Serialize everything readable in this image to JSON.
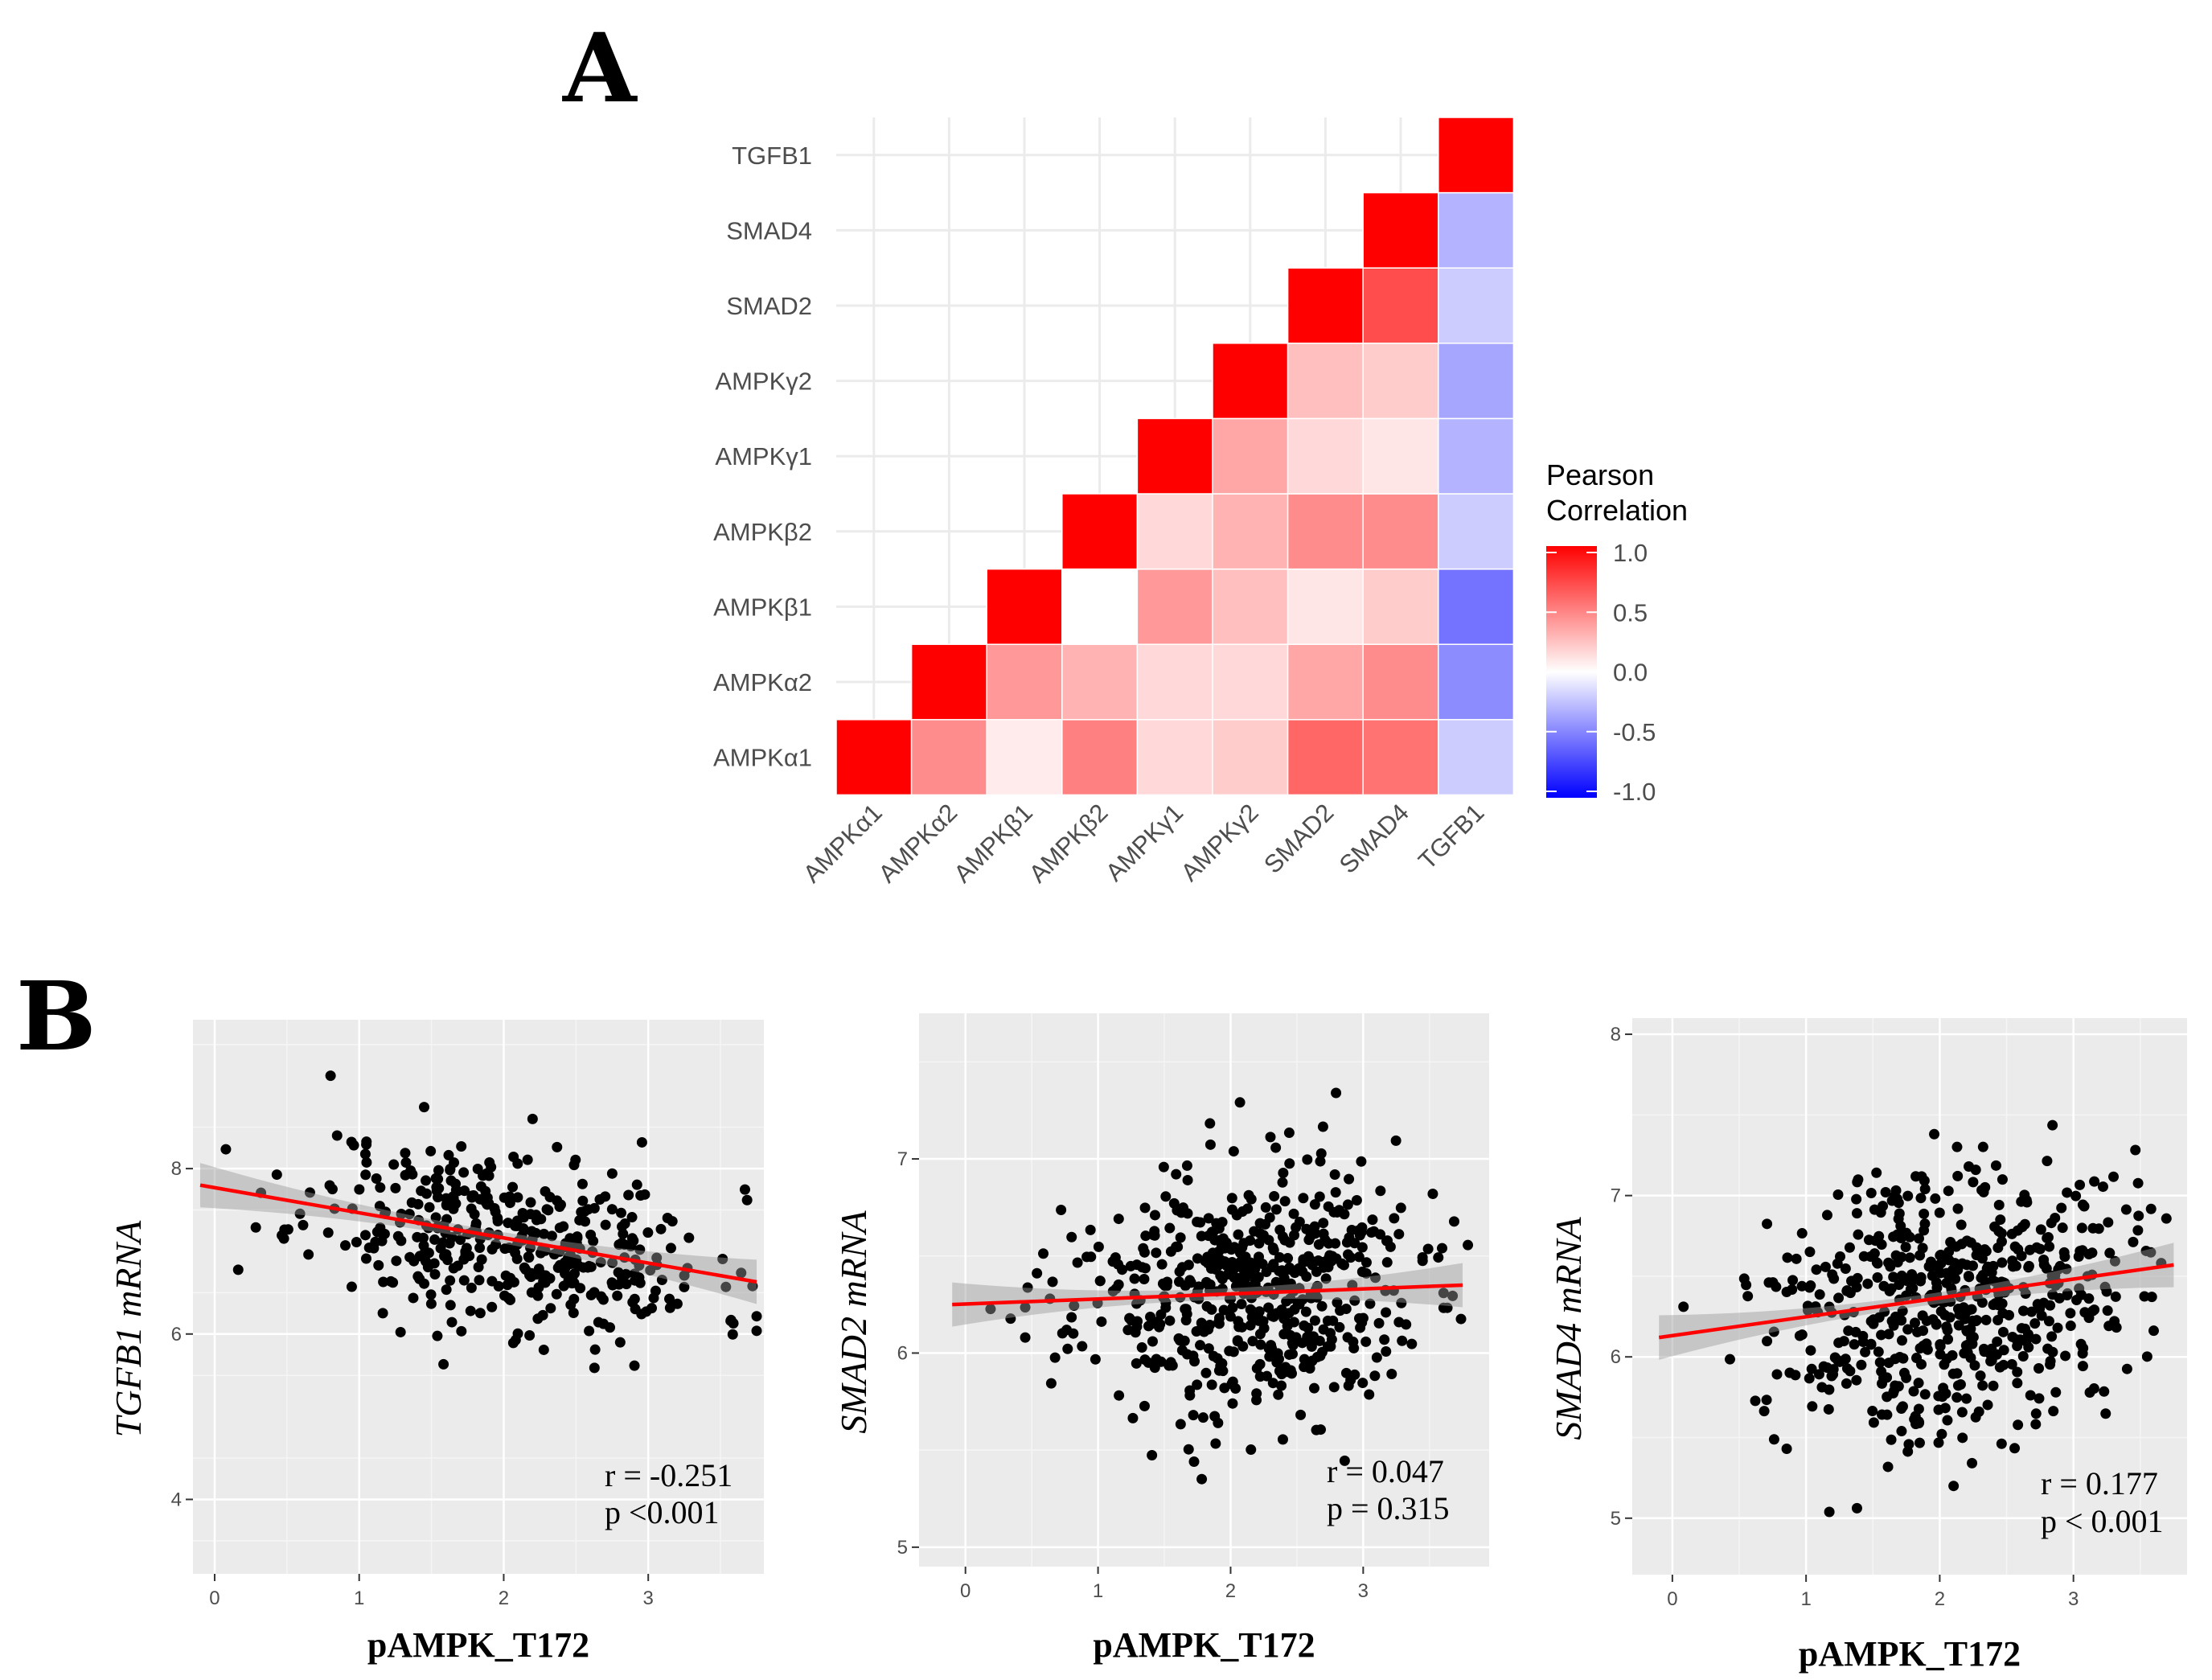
{
  "panels": {
    "a_label": "A",
    "b_label": "B"
  },
  "colors": {
    "high": "#ff0000",
    "mid": "#ffffff",
    "low": "#0000ff",
    "panel_bg": "#ebebeb",
    "grid": "#ffffff",
    "points": "#000000",
    "fit": "#ff0000",
    "ci": "#999999"
  },
  "chart_data": [
    {
      "type": "heatmap",
      "title": "",
      "x_labels": [
        "AMPKα1",
        "AMPKα2",
        "AMPKβ1",
        "AMPKβ2",
        "AMPKγ1",
        "AMPKγ2",
        "SMAD2",
        "SMAD4",
        "TGFB1"
      ],
      "y_labels": [
        "AMPKα1",
        "AMPKα2",
        "AMPKβ1",
        "AMPKβ2",
        "AMPKγ1",
        "AMPKγ2",
        "SMAD2",
        "SMAD4",
        "TGFB1"
      ],
      "matrix": [
        [
          1.0,
          0.45,
          0.08,
          0.5,
          0.15,
          0.2,
          0.6,
          0.55,
          -0.2
        ],
        [
          0.45,
          1.0,
          0.4,
          0.3,
          0.15,
          0.15,
          0.35,
          0.45,
          -0.45
        ],
        [
          0.08,
          0.4,
          1.0,
          0.0,
          0.4,
          0.25,
          0.1,
          0.2,
          -0.55
        ],
        [
          0.5,
          0.3,
          0.0,
          1.0,
          0.15,
          0.3,
          0.45,
          0.45,
          -0.2
        ],
        [
          0.15,
          0.15,
          0.4,
          0.15,
          1.0,
          0.35,
          0.15,
          0.1,
          -0.3
        ],
        [
          0.2,
          0.15,
          0.25,
          0.3,
          0.35,
          1.0,
          0.25,
          0.2,
          -0.35
        ],
        [
          0.6,
          0.35,
          0.1,
          0.45,
          0.15,
          0.25,
          1.0,
          0.7,
          -0.2
        ],
        [
          0.55,
          0.45,
          0.2,
          0.45,
          0.1,
          0.2,
          0.7,
          1.0,
          -0.3
        ],
        [
          -0.2,
          -0.45,
          -0.55,
          -0.2,
          -0.3,
          -0.35,
          -0.2,
          -0.3,
          1.0
        ]
      ],
      "display": "lower-triangle",
      "legend": {
        "title_line1": "Pearson",
        "title_line2": "Correlation",
        "ticks": [
          "1.0",
          "0.5",
          "0.0",
          "-0.5",
          "-1.0"
        ],
        "range": [
          -1,
          1
        ],
        "placement": "right"
      }
    },
    {
      "type": "scatter",
      "xlabel": "pAMPK_T172",
      "ylabel": "TGFB1 mRNA",
      "xlim": [
        -0.15,
        3.8
      ],
      "ylim": [
        3.1,
        9.8
      ],
      "xticks": [
        "0",
        "1",
        "2",
        "3"
      ],
      "yticks": [
        "4",
        "6",
        "8"
      ],
      "fit": {
        "x0": -0.1,
        "y0": 7.8,
        "x1": 3.75,
        "y1": 6.63
      },
      "n_points": 420,
      "cluster": {
        "x_mean": 2.05,
        "x_sd": 0.7,
        "y_mean": 7.1,
        "y_sd": 0.55
      },
      "r_text": "r = -0.251",
      "p_text": "p <0.001"
    },
    {
      "type": "scatter",
      "xlabel": "pAMPK_T172",
      "ylabel": "SMAD2 mRNA",
      "xlim": [
        -0.35,
        3.95
      ],
      "ylim": [
        4.9,
        7.75
      ],
      "xticks": [
        "0",
        "1",
        "2",
        "3"
      ],
      "yticks": [
        "5",
        "6",
        "7"
      ],
      "fit": {
        "x0": -0.1,
        "y0": 6.25,
        "x1": 3.75,
        "y1": 6.35
      },
      "n_points": 560,
      "cluster": {
        "x_mean": 2.1,
        "x_sd": 0.65,
        "y_mean": 6.3,
        "y_sd": 0.32
      },
      "r_text": "r = 0.047",
      "p_text": "p = 0.315"
    },
    {
      "type": "scatter",
      "xlabel": "pAMPK_T172",
      "ylabel": "SMAD4 mRNA",
      "xlim": [
        -0.3,
        3.85
      ],
      "ylim": [
        4.65,
        8.1
      ],
      "xticks": [
        "0",
        "1",
        "2",
        "3"
      ],
      "yticks": [
        "5",
        "6",
        "7",
        "8"
      ],
      "fit": {
        "x0": -0.1,
        "y0": 6.12,
        "x1": 3.75,
        "y1": 6.57
      },
      "n_points": 560,
      "cluster": {
        "x_mean": 2.1,
        "x_sd": 0.65,
        "y_mean": 6.4,
        "y_sd": 0.42
      },
      "r_text": "r = 0.177",
      "p_text": "p < 0.001"
    }
  ]
}
